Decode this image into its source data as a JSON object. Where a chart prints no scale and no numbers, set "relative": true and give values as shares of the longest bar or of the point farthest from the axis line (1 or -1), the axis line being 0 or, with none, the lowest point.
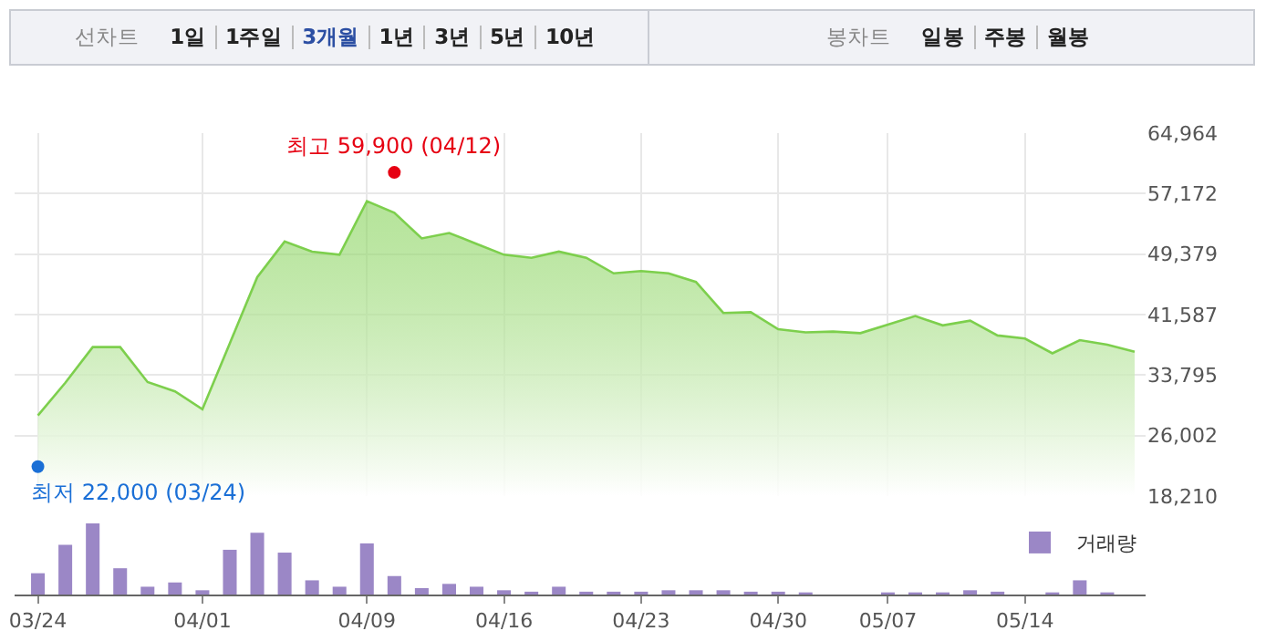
{
  "chart_data": [
    {
      "type": "area",
      "categories": [
        null,
        null,
        null,
        null,
        null,
        null,
        null,
        null,
        null,
        null,
        null,
        null,
        null,
        null,
        null,
        null,
        null,
        null,
        null,
        null,
        null,
        null,
        null,
        null,
        null,
        null,
        null,
        null,
        null,
        null,
        null,
        null,
        null,
        null,
        null,
        null,
        null,
        null,
        null,
        null,
        null
      ],
      "series": [
        {
          "color": "#7dcf4d",
          "values": [
            28600,
            32800,
            37400,
            37400,
            32900,
            31700,
            29400,
            37900,
            46400,
            51000,
            49700,
            49300,
            56200,
            54700,
            51400,
            52100,
            50700,
            49300,
            48900,
            49700,
            48900,
            46900,
            47200,
            46900,
            45800,
            41800,
            41900,
            39700,
            39300,
            39400,
            39200,
            40300,
            41400,
            40200,
            40800,
            38900,
            38500,
            36600,
            38300,
            37700,
            36800
          ]
        },
        {
          "type": "scatter",
          "color": "#e60012",
          "values": [
            null,
            null,
            null,
            null,
            null,
            null,
            null,
            null,
            null,
            null,
            null,
            null,
            null,
            59900,
            null,
            null,
            null,
            null,
            null,
            null,
            null,
            null,
            null,
            null,
            null,
            null,
            null,
            null,
            null,
            null,
            null,
            null,
            null,
            null,
            null,
            null,
            null,
            null,
            null,
            null,
            null
          ]
        },
        {
          "type": "scatter",
          "color": "#1a6fd6",
          "values": [
            22000,
            null,
            null,
            null,
            null,
            null,
            null,
            null,
            null,
            null,
            null,
            null,
            null,
            null,
            null,
            null,
            null,
            null,
            null,
            null,
            null,
            null,
            null,
            null,
            null,
            null,
            null,
            null,
            null,
            null,
            null,
            null,
            null,
            null,
            null,
            null,
            null,
            null,
            null,
            null,
            null
          ]
        }
      ],
      "ylim": [
        18210,
        64964
      ],
      "yticks": [
        {
          "value": 18210,
          "label": "18,210"
        },
        {
          "value": 26002,
          "label": "26,002"
        },
        {
          "value": 33795,
          "label": "33,795"
        },
        {
          "value": 41587,
          "label": "41,587"
        },
        {
          "value": 49379,
          "label": "49,379"
        },
        {
          "value": 57172,
          "label": "57,172"
        },
        {
          "value": 64964,
          "label": "64,964"
        }
      ],
      "grid": true,
      "tick_labels": "y",
      "annotations": [
        "최고 59,900 (04/12)",
        "최저 22,000 (03/24)",
        "선차트",
        "1일",
        "1주일",
        "3개월",
        "1년",
        "3년",
        "5년",
        "10년",
        "봉차트",
        "일봉",
        "주봉",
        "월봉"
      ]
    },
    {
      "type": "bar",
      "categories": [
        "03/24",
        null,
        null,
        null,
        null,
        null,
        "04/01",
        null,
        null,
        null,
        null,
        null,
        "04/09",
        null,
        null,
        null,
        null,
        "04/16",
        null,
        null,
        null,
        null,
        "04/23",
        null,
        null,
        null,
        null,
        "04/30",
        null,
        null,
        null,
        "05/07",
        null,
        null,
        null,
        null,
        "05/14",
        null,
        null,
        null,
        null
      ],
      "series": [
        {
          "name": "거래량",
          "color": "#9b87c6",
          "values": [
            0.3,
            0.7,
            1,
            0.37,
            0.11,
            0.17,
            0.06,
            0.63,
            0.87,
            0.59,
            0.2,
            0.11,
            0.72,
            0.26,
            0.09,
            0.15,
            0.11,
            0.06,
            0.04,
            0.11,
            0.04,
            0.04,
            0.04,
            0.06,
            0.06,
            0.06,
            0.04,
            0.04,
            0.03,
            null,
            null,
            0.03,
            0.03,
            0.03,
            0.06,
            0.04,
            null,
            0.03,
            0.2,
            0.03,
            null
          ]
        }
      ],
      "relative": true,
      "legend": "top right",
      "tick_labels": "x"
    }
  ]
}
